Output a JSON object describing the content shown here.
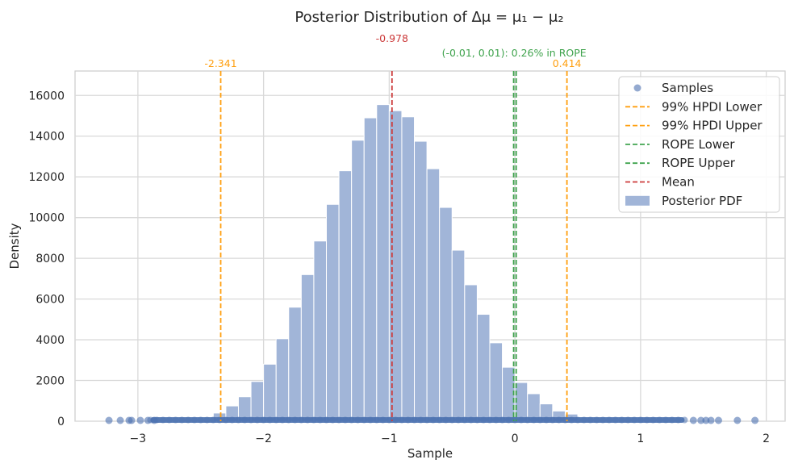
{
  "chart_data": {
    "type": "bar",
    "title": "Posterior Distribution of  Δμ = μ₁ − μ₂",
    "xlabel": "Sample",
    "ylabel": "Density",
    "xlim": [
      -3.5,
      2.15
    ],
    "ylim": [
      0,
      17200
    ],
    "xticks": [
      -3,
      -2,
      -1,
      0,
      1,
      2
    ],
    "xtick_labels": [
      "−3",
      "−2",
      "−1",
      "0",
      "1",
      "2"
    ],
    "yticks": [
      0,
      2000,
      4000,
      6000,
      8000,
      10000,
      12000,
      14000,
      16000
    ],
    "ytick_labels": [
      "0",
      "2000",
      "4000",
      "6000",
      "8000",
      "10000",
      "12000",
      "14000",
      "16000"
    ],
    "grid": true,
    "legend_position": "top-right",
    "histogram": {
      "name": "Posterior PDF",
      "color": "#a1b5d8",
      "bin_left_edges": [
        -2.4,
        -2.3,
        -2.2,
        -2.1,
        -2.0,
        -1.9,
        -1.8,
        -1.7,
        -1.6,
        -1.5,
        -1.4,
        -1.3,
        -1.2,
        -1.1,
        -1.0,
        -0.9,
        -0.8,
        -0.7,
        -0.6,
        -0.5,
        -0.4,
        -0.3,
        -0.2,
        -0.1,
        0.0,
        0.1,
        0.2,
        0.3,
        0.4
      ],
      "bin_width": 0.1,
      "values": [
        400,
        750,
        1200,
        1950,
        2800,
        4050,
        5600,
        7200,
        8850,
        10650,
        12300,
        13800,
        14900,
        15550,
        15250,
        14950,
        13750,
        12400,
        10500,
        8400,
        6700,
        5250,
        3850,
        2650,
        1900,
        1350,
        850,
        500,
        350
      ]
    },
    "samples": {
      "name": "Samples",
      "color": "#4c72b0",
      "y_value": 0,
      "dense_range": [
        -2.9,
        1.35
      ],
      "outliers": [
        -3.23,
        -3.14,
        -3.07,
        -3.05,
        -2.98,
        -2.92,
        -2.87,
        1.42,
        1.48,
        1.52,
        1.56,
        1.62,
        1.77,
        1.91
      ]
    },
    "vlines": [
      {
        "name": "99% HPDI Lower",
        "x": -2.341,
        "color": "#ff9f0f",
        "label_text": "-2.341"
      },
      {
        "name": "99% HPDI Upper",
        "x": 0.414,
        "color": "#ff9f0f",
        "label_text": "0.414"
      },
      {
        "name": "ROPE Lower",
        "x": -0.01,
        "color": "#3fa34d",
        "label_text": ""
      },
      {
        "name": "ROPE Upper",
        "x": 0.01,
        "color": "#3fa34d",
        "label_text": ""
      },
      {
        "name": "Mean",
        "x": -0.978,
        "color": "#cc3b3b",
        "label_text": "-0.978"
      }
    ],
    "rope_annotation": "(-0.01, 0.01): 0.26% in ROPE",
    "legend": [
      "Samples",
      "99% HPDI Lower",
      "99% HPDI Upper",
      "ROPE Lower",
      "ROPE Upper",
      "Mean",
      "Posterior PDF"
    ]
  }
}
